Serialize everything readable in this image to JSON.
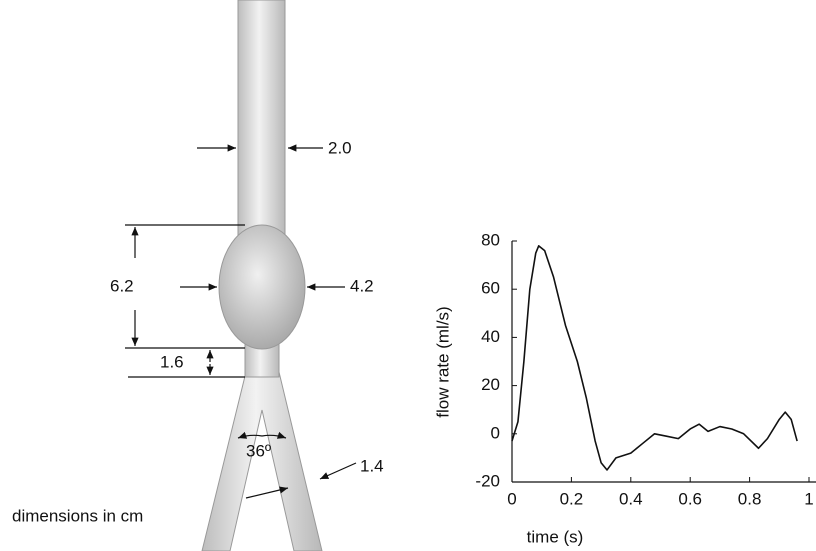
{
  "diagram": {
    "labels": [
      "2.0",
      "6.2",
      "4.2",
      "1.6",
      "36º",
      "1.4",
      "dimensions in cm"
    ]
  },
  "chart_data": {
    "type": "line",
    "xlabel": "time (s)",
    "ylabel": "flow rate (ml/s)",
    "xlim": [
      0,
      1
    ],
    "ylim": [
      -20,
      80
    ],
    "xticks": [
      0,
      0.2,
      0.4,
      0.6,
      0.8,
      1
    ],
    "yticks": [
      -20,
      0,
      20,
      40,
      60,
      80
    ],
    "series": [
      {
        "color": "#111111",
        "x": [
          0,
          0.02,
          0.04,
          0.06,
          0.08,
          0.09,
          0.11,
          0.14,
          0.18,
          0.22,
          0.25,
          0.28,
          0.3,
          0.32,
          0.35,
          0.4,
          0.44,
          0.48,
          0.52,
          0.56,
          0.6,
          0.63,
          0.66,
          0.7,
          0.74,
          0.78,
          0.83,
          0.86,
          0.9,
          0.92,
          0.94,
          0.96
        ],
        "values": [
          -3,
          5,
          30,
          60,
          75,
          78,
          76,
          65,
          45,
          30,
          15,
          -3,
          -12,
          -15,
          -10,
          -8,
          -4,
          0,
          -1,
          -2,
          2,
          4,
          1,
          3,
          2,
          0,
          -6,
          -2,
          6,
          9,
          6,
          -3
        ]
      }
    ]
  }
}
